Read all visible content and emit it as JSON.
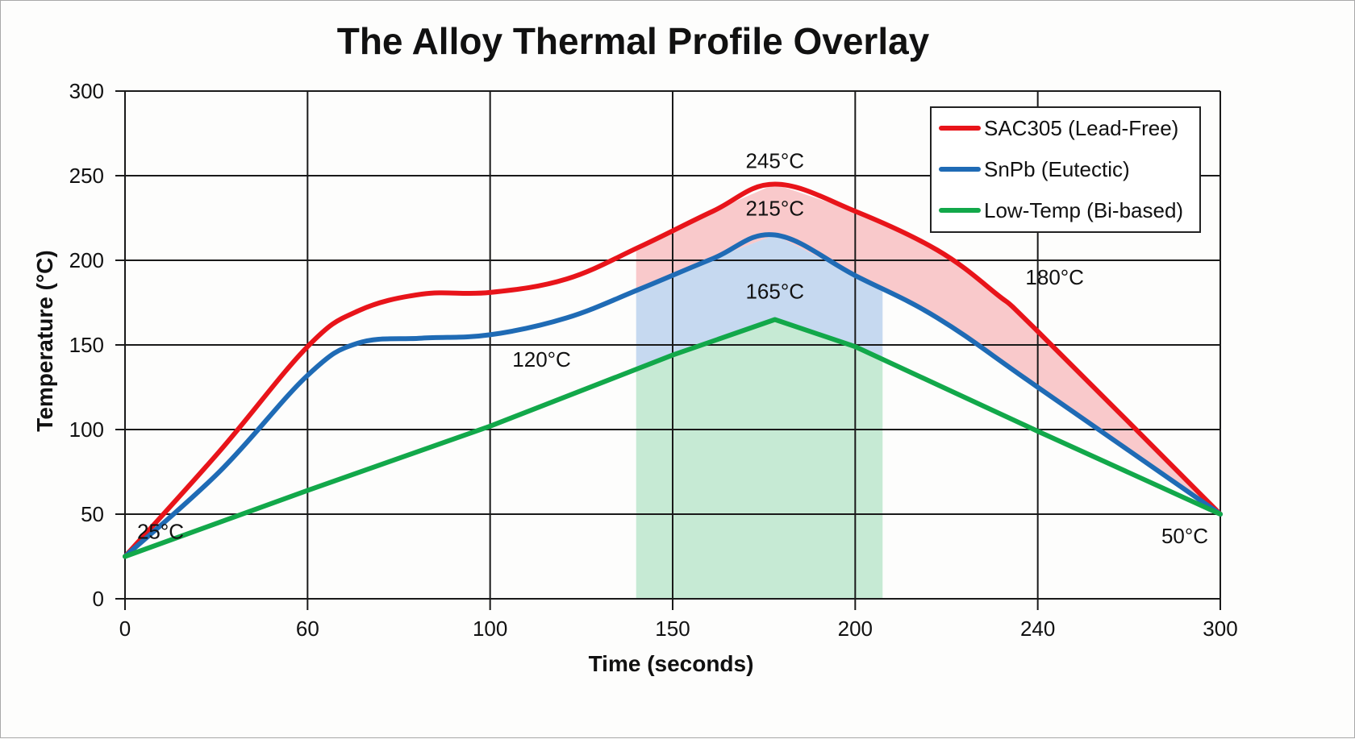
{
  "chart_data": {
    "type": "line",
    "title": "The Alloy Thermal Profile Overlay",
    "xlabel": "Time (seconds)",
    "ylabel": "Temperature (°C)",
    "x_ticks": [
      0,
      60,
      100,
      150,
      200,
      240,
      300
    ],
    "x_tick_labels": [
      "0",
      "60",
      "100",
      "150",
      "200",
      "240",
      "300"
    ],
    "y_ticks": [
      0,
      50,
      100,
      150,
      200,
      250,
      300
    ],
    "y_tick_labels": [
      "0",
      "50",
      "100",
      "150",
      "200",
      "250",
      "300"
    ],
    "xlim": [
      0,
      300
    ],
    "ylim": [
      0,
      300
    ],
    "grid": true,
    "legend_position": "top-right",
    "series": [
      {
        "name": "SAC305 (Lead-Free)",
        "color": "#e8141a",
        "x": [
          0,
          31,
          60,
          71,
          85,
          100,
          121,
          141,
          161,
          178,
          200,
          218,
          231,
          240,
          300
        ],
        "y": [
          25,
          87,
          149,
          170,
          180,
          181,
          189,
          208,
          229,
          245,
          229,
          206,
          180,
          158,
          50
        ]
      },
      {
        "name": "SnPb (Eutectic)",
        "color": "#1f6bb5",
        "x": [
          0,
          31,
          60,
          71,
          85,
          100,
          121,
          141,
          161,
          178,
          200,
          218,
          240,
          300
        ],
        "y": [
          25,
          75,
          132,
          151,
          154,
          156,
          166,
          183,
          201,
          215,
          191,
          166,
          125,
          50
        ]
      },
      {
        "name": "Low-Temp (Bi-based)",
        "color": "#12a84a",
        "x": [
          0,
          60,
          100,
          150,
          178,
          200,
          240,
          300
        ],
        "y": [
          25,
          64,
          102,
          144,
          165,
          149,
          99,
          50
        ]
      }
    ],
    "shaded_window": {
      "x_start": 140,
      "x_end": 206
    },
    "fill_colors": {
      "between_red_blue": "#f9c9cb",
      "between_blue_green": "#c6d9f0",
      "below_green": "#c6ead4"
    },
    "annotations": [
      {
        "text": "245°C",
        "x": 178,
        "y": 245,
        "series": "SAC305 (Lead-Free)"
      },
      {
        "text": "215°C",
        "x": 178,
        "y": 215,
        "series": "SnPb (Eutectic)"
      },
      {
        "text": "165°C",
        "x": 178,
        "y": 165,
        "series": "Low-Temp (Bi-based)"
      },
      {
        "text": "120°C",
        "x": 115,
        "y": 120,
        "series": "Low-Temp (Bi-based)"
      },
      {
        "text": "180°C",
        "x": 237,
        "y": 180,
        "series": "SAC305 (Lead-Free)"
      },
      {
        "text": "25°C",
        "x": 0,
        "y": 25,
        "series": "all"
      },
      {
        "text": "50°C",
        "x": 300,
        "y": 50,
        "series": "all"
      }
    ]
  }
}
